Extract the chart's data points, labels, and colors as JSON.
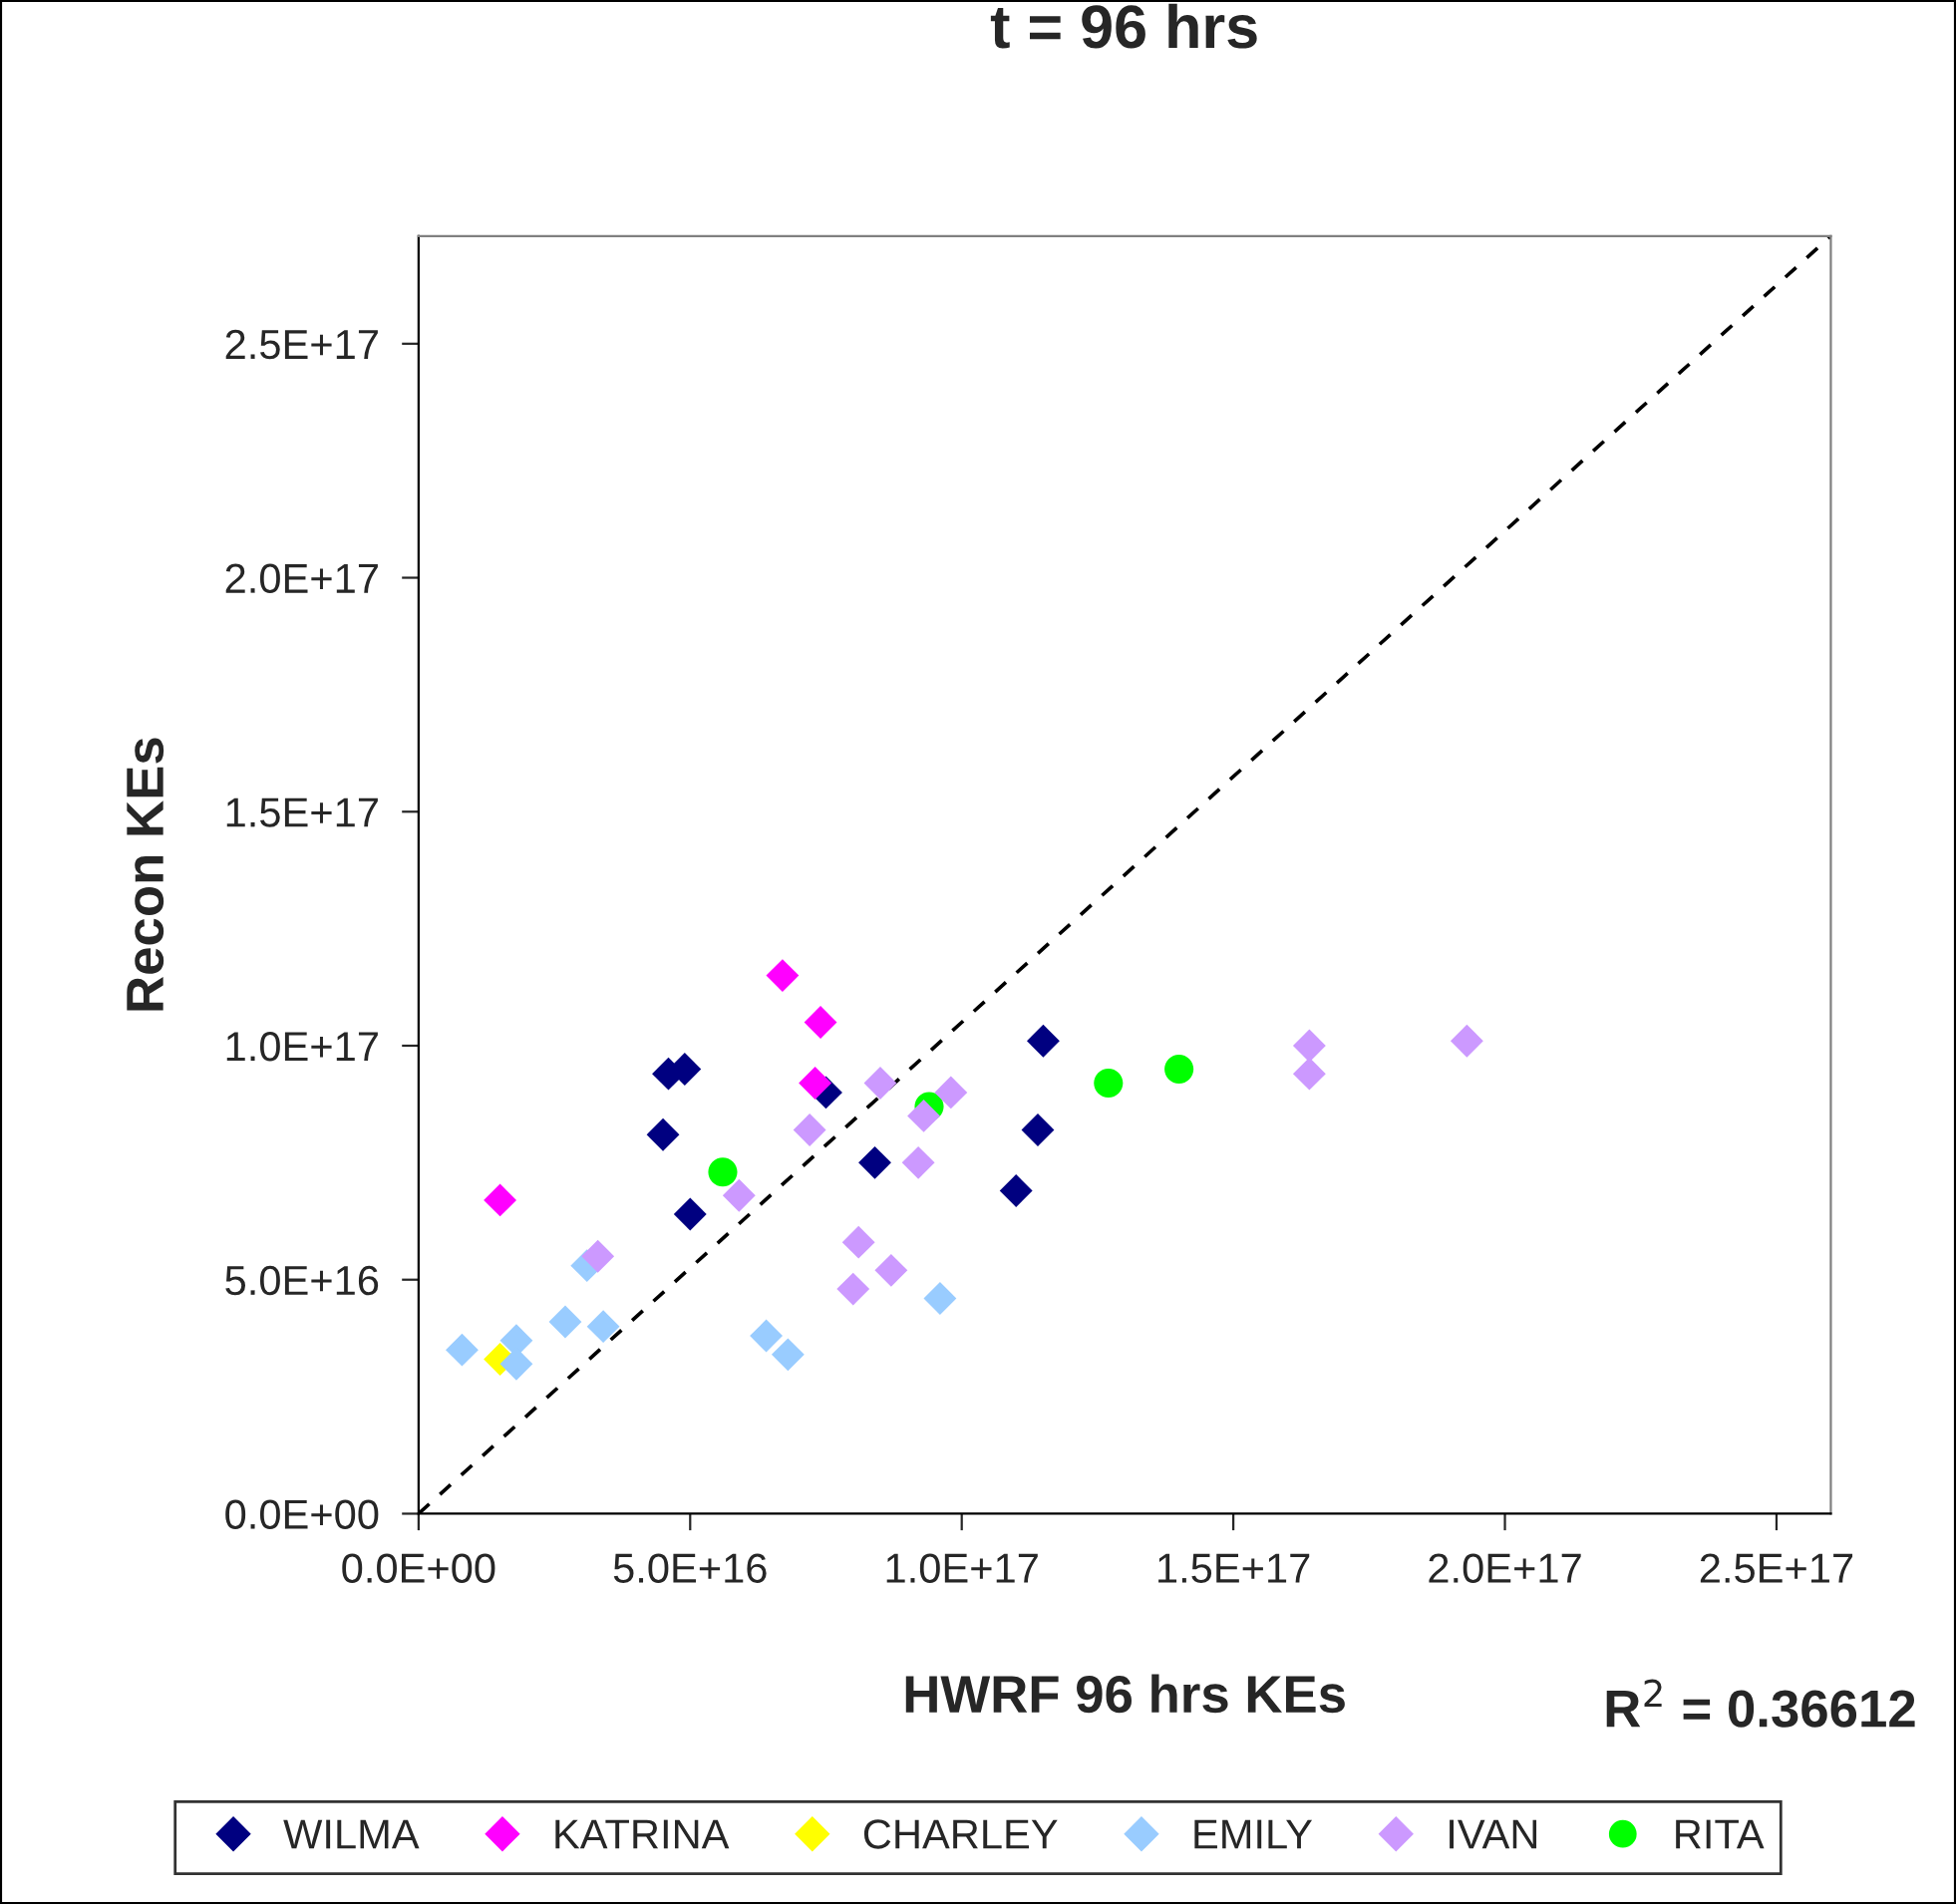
{
  "chart_data": {
    "type": "scatter",
    "title": "t = 96 hrs",
    "xlabel": "HWRF 96 hrs KEs",
    "ylabel": "Recon KEs",
    "annotations": [
      "R$^{2}$ = 0.36612"
    ],
    "xlim": [
      0,
      2.6e+17
    ],
    "ylim": [
      0,
      2.73e+17
    ],
    "xticks": [
      {
        "value": 0,
        "label": "0.0E+00"
      },
      {
        "value": 5e+16,
        "label": "5.0E+16"
      },
      {
        "value": 1e+17,
        "label": "1.0E+17"
      },
      {
        "value": 1.5e+17,
        "label": "1.5E+17"
      },
      {
        "value": 2e+17,
        "label": "2.0E+17"
      },
      {
        "value": 2.5e+17,
        "label": "2.5E+17"
      }
    ],
    "yticks": [
      {
        "value": 0,
        "label": "0.0E+00"
      },
      {
        "value": 5e+16,
        "label": "5.0E+16"
      },
      {
        "value": 1e+17,
        "label": "1.0E+17"
      },
      {
        "value": 1.5e+17,
        "label": "1.5E+17"
      },
      {
        "value": 2e+17,
        "label": "2.0E+17"
      },
      {
        "value": 2.5e+17,
        "label": "2.5E+17"
      }
    ],
    "grid": false,
    "legend": "bottom",
    "series": [
      {
        "name": "WILMA",
        "color": "#000080",
        "marker": "diamond",
        "x": [
          4.6e+16,
          4.9e+16,
          4.5e+16,
          5e+16,
          7.5e+16,
          8.4e+16,
          1.15e+17,
          1.14e+17,
          1.1e+17
        ],
        "values": [
          9.4e+16,
          9.5e+16,
          8.1e+16,
          6.4e+16,
          9e+16,
          7.5e+16,
          1.01e+17,
          8.2e+16,
          6.9e+16
        ]
      },
      {
        "name": "KATRINA",
        "color": "#ff00ff",
        "marker": "diamond",
        "x": [
          1.5e+16,
          6.7e+16,
          7.4e+16,
          7.3e+16
        ],
        "values": [
          6.7e+16,
          1.15e+17,
          1.05e+17,
          9.2e+16
        ]
      },
      {
        "name": "CHARLEY",
        "color": "#ffff00",
        "marker": "diamond",
        "x": [
          1.5e+16
        ],
        "values": [
          3.3e+16
        ]
      },
      {
        "name": "EMILY",
        "color": "#99ccff",
        "marker": "diamond",
        "x": [
          8000000000000000.0,
          1.8e+16,
          1.8e+16,
          2.7e+16,
          3.1e+16,
          3.4e+16,
          6.4e+16,
          6.8e+16,
          9.6e+16
        ],
        "values": [
          3.5e+16,
          3.7e+16,
          3.2e+16,
          4.1e+16,
          5.3e+16,
          4e+16,
          3.8e+16,
          3.4e+16,
          4.6e+16
        ]
      },
      {
        "name": "IVAN",
        "color": "#cc99ff",
        "marker": "diamond",
        "x": [
          3.3e+16,
          5.9e+16,
          7.2e+16,
          8.5e+16,
          9.8e+16,
          9.3e+16,
          9.2e+16,
          8.1e+16,
          8e+16,
          8.7e+16,
          1.64e+17,
          1.64e+17,
          1.93e+17
        ],
        "values": [
          5.5e+16,
          6.8e+16,
          8.2e+16,
          9.2e+16,
          9e+16,
          8.5e+16,
          7.5e+16,
          5.8e+16,
          4.8e+16,
          5.2e+16,
          1e+17,
          9.4e+16,
          1.01e+17
        ]
      },
      {
        "name": "RITA",
        "color": "#00ff00",
        "marker": "circle",
        "x": [
          5.6e+16,
          9.4e+16,
          1.27e+17,
          1.4e+17
        ],
        "values": [
          7.3e+16,
          8.7e+16,
          9.2e+16,
          9.5e+16
        ]
      },
      {
        "type": "line",
        "color": "#000000",
        "marker": "none",
        "line_style": "dashed",
        "x": [
          0,
          2.6e+17
        ],
        "values": [
          0,
          2.73e+17
        ]
      }
    ]
  }
}
